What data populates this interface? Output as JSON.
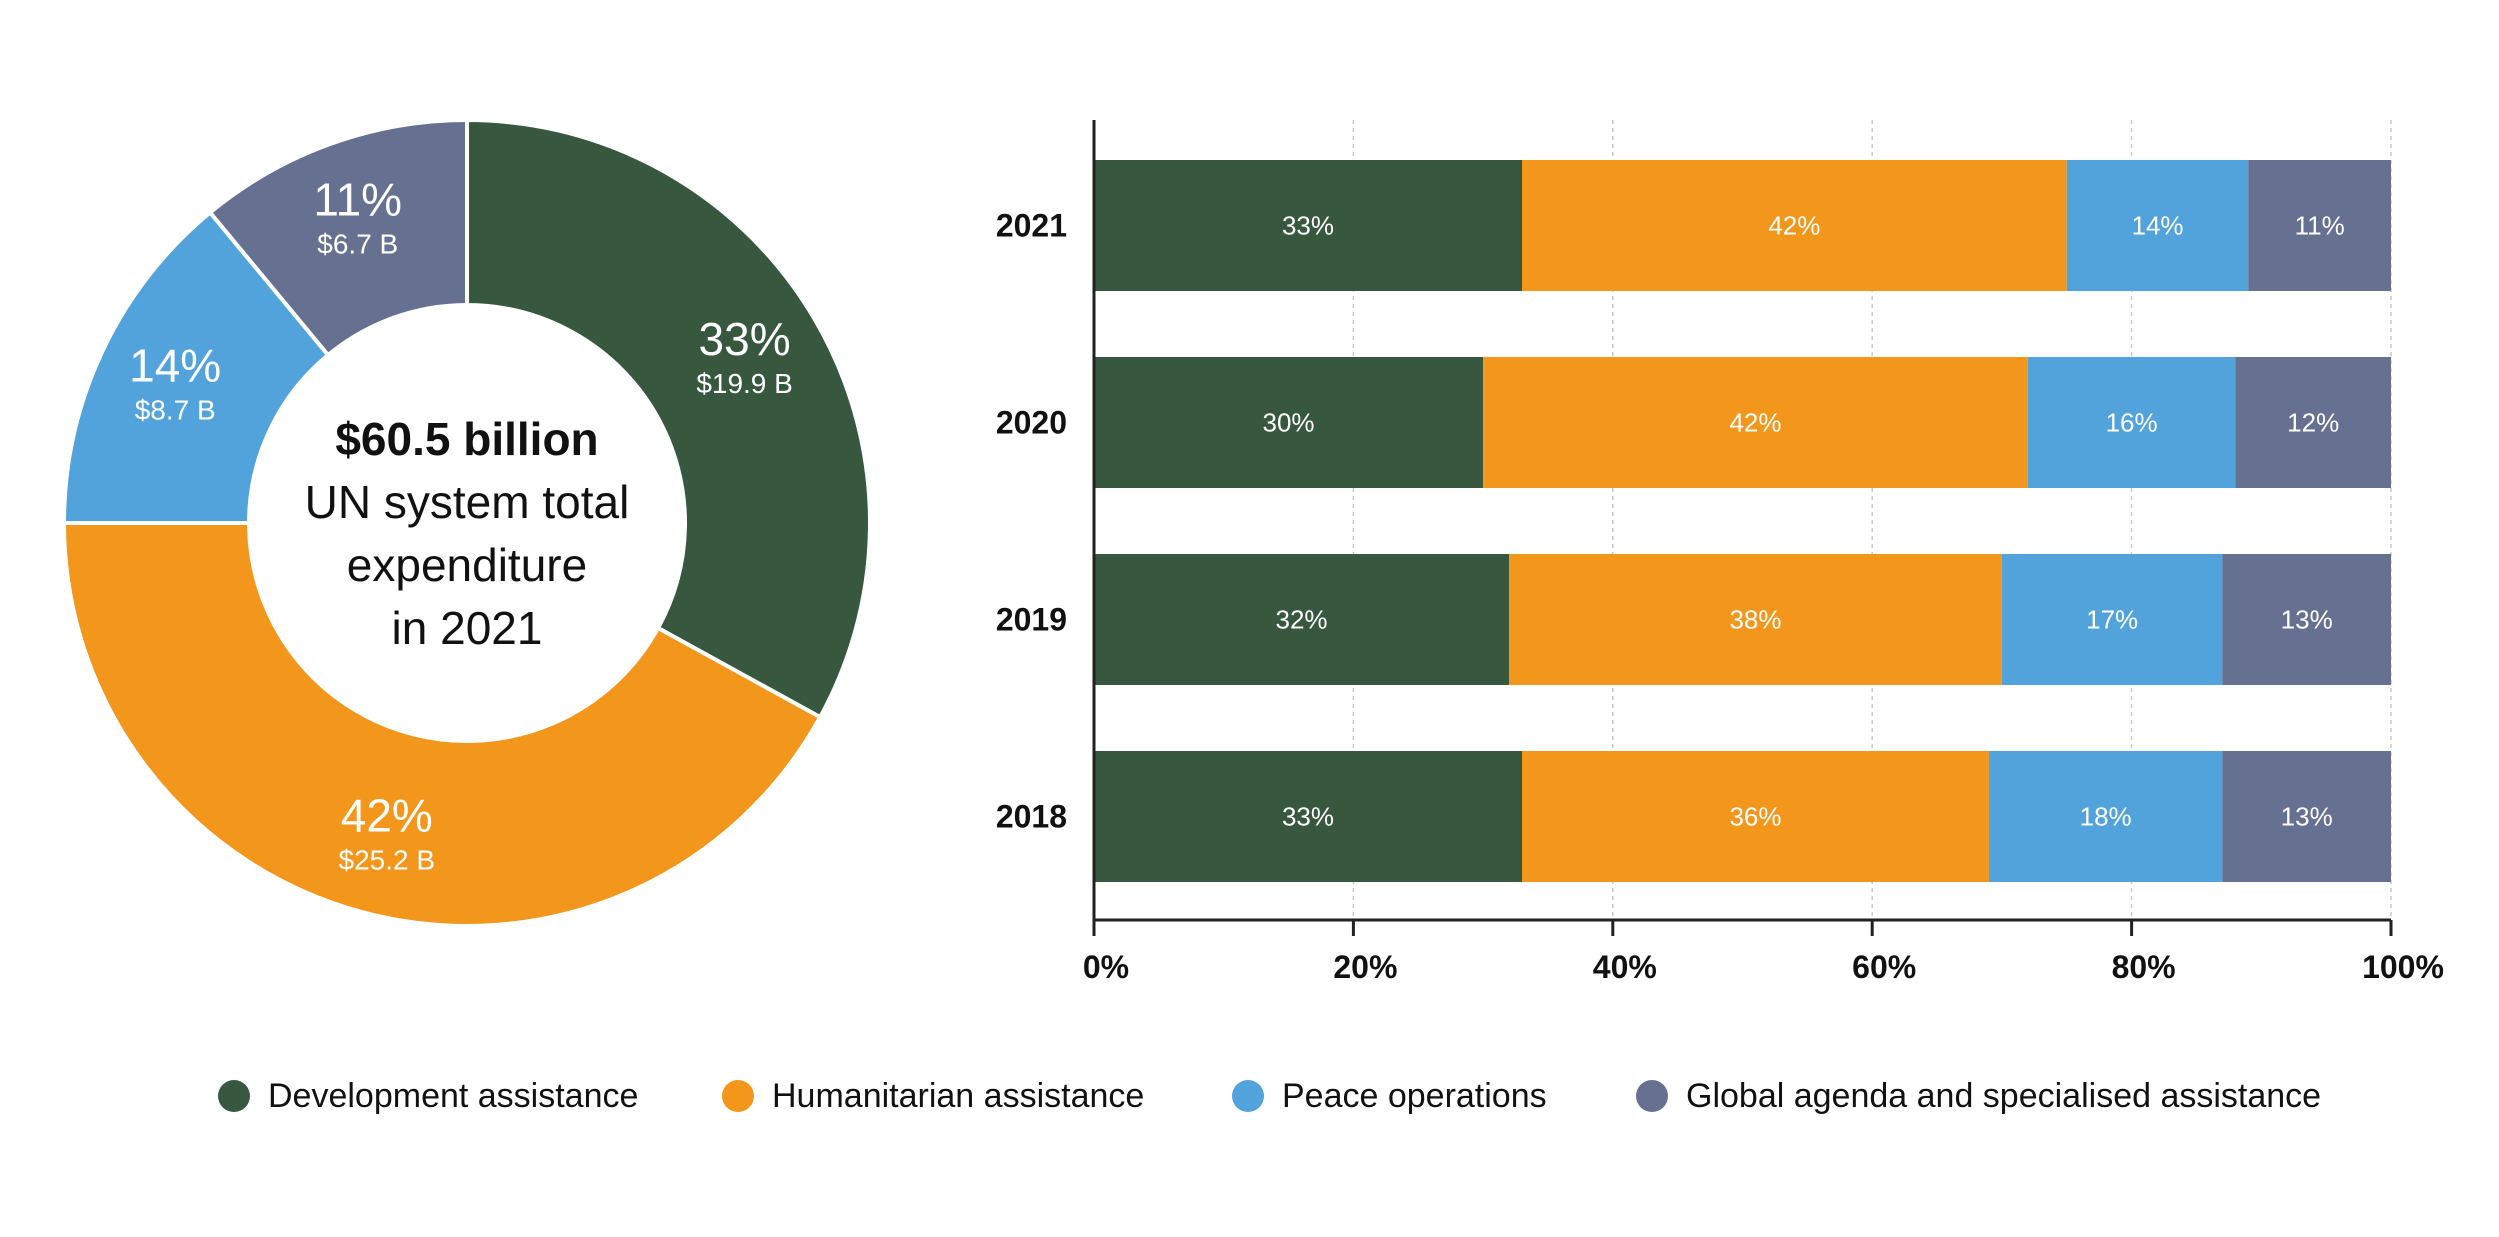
{
  "colors": {
    "development": "#37583f",
    "humanitarian": "#f2961c",
    "peace": "#52a3db",
    "global": "#667091"
  },
  "chart_data": [
    {
      "type": "pie",
      "variant": "donut",
      "title": "UN system total expenditure in 2021",
      "center_text": {
        "total": "$60.5 billion",
        "lines": [
          "UN system total",
          "expenditure",
          "in 2021"
        ]
      },
      "slices": [
        {
          "key": "development",
          "name": "Development assistance",
          "percent": 33,
          "percent_label": "33%",
          "amount_label": "$19.9 B",
          "amount_billion": 19.9
        },
        {
          "key": "humanitarian",
          "name": "Humanitarian assistance",
          "percent": 42,
          "percent_label": "42%",
          "amount_label": "$25.2 B",
          "amount_billion": 25.2
        },
        {
          "key": "peace",
          "name": "Peace operations",
          "percent": 14,
          "percent_label": "14%",
          "amount_label": "$8.7 B",
          "amount_billion": 8.7
        },
        {
          "key": "global",
          "name": "Global agenda and specialised assistance",
          "percent": 11,
          "percent_label": "11%",
          "amount_label": "$6.7 B",
          "amount_billion": 6.7
        }
      ]
    },
    {
      "type": "bar",
      "orientation": "horizontal",
      "stacked": true,
      "normalized": true,
      "categories": [
        "2021",
        "2020",
        "2019",
        "2018"
      ],
      "series": [
        {
          "key": "development",
          "name": "Development assistance",
          "values": [
            33,
            30,
            32,
            33
          ]
        },
        {
          "key": "humanitarian",
          "name": "Humanitarian assistance",
          "values": [
            42,
            42,
            38,
            36
          ]
        },
        {
          "key": "peace",
          "name": "Peace operations",
          "values": [
            14,
            16,
            17,
            18
          ]
        },
        {
          "key": "global",
          "name": "Global agenda and specialised assistance",
          "values": [
            11,
            12,
            13,
            13
          ]
        }
      ],
      "xlim": [
        0,
        100
      ],
      "xticks": [
        "0%",
        "20%",
        "40%",
        "60%",
        "80%",
        "100%"
      ],
      "xtick_values": [
        0,
        20,
        40,
        60,
        80,
        100
      ],
      "grid": "vertical-dashed",
      "xlabel": "",
      "ylabel": ""
    }
  ],
  "legend": {
    "placement": "bottom-center",
    "items": [
      {
        "key": "development",
        "label": "Development assistance"
      },
      {
        "key": "humanitarian",
        "label": "Humanitarian assistance"
      },
      {
        "key": "peace",
        "label": "Peace operations"
      },
      {
        "key": "global",
        "label": "Global agenda and specialised assistance"
      }
    ]
  }
}
